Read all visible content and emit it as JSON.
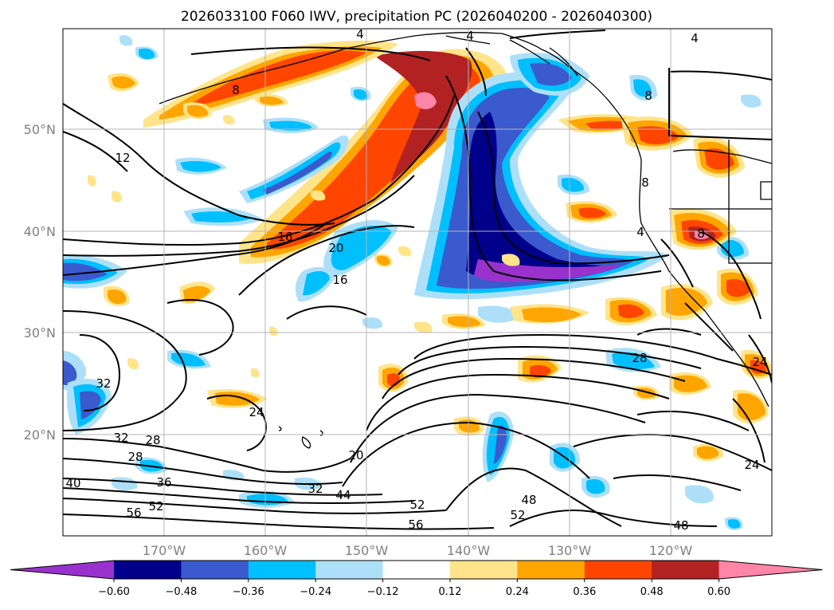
{
  "title": "2026033100 F060 IWV, precipitation PC (2026040200 - 2026040300)",
  "map": {
    "lat_labels": [
      "50°N",
      "40°N",
      "30°N",
      "20°N"
    ],
    "lon_labels": [
      "170°W",
      "160°W",
      "150°W",
      "140°W",
      "130°W",
      "120°W"
    ],
    "lat_values": [
      50,
      40,
      30,
      20
    ],
    "lon_values": [
      -170,
      -160,
      -150,
      -140,
      -130,
      -120
    ],
    "extent": {
      "lon_min": -180,
      "lon_max": -110,
      "lat_min": 10,
      "lat_max": 60
    }
  },
  "contour_labels": [
    "4",
    "4",
    "4",
    "8",
    "8",
    "8",
    "4",
    "8",
    "12",
    "16",
    "16",
    "20",
    "20",
    "24",
    "28",
    "28",
    "32",
    "32",
    "28",
    "36",
    "40",
    "56",
    "52",
    "32",
    "44",
    "52",
    "56",
    "48",
    "52",
    "48",
    "24",
    "24"
  ],
  "colorbar": {
    "ticks": [
      "−0.60",
      "−0.48",
      "−0.36",
      "−0.24",
      "−0.12",
      "0.12",
      "0.24",
      "0.36",
      "0.48",
      "0.60"
    ],
    "colors": [
      "#9932CC",
      "#00008B",
      "#3A5ACD",
      "#00BFFF",
      "#ADE0F8",
      "#FFFFFF",
      "#FFE48A",
      "#FFA500",
      "#FF4500",
      "#B22222",
      "#FF85A8"
    ]
  },
  "fill_colors": {
    "neg1": "#ADE0F8",
    "neg2": "#00BFFF",
    "neg3": "#3A5ACD",
    "neg4": "#00008B",
    "neg5": "#9932CC",
    "pos1": "#FFE48A",
    "pos2": "#FFA500",
    "pos3": "#FF4500",
    "pos4": "#B22222",
    "pos5": "#FF85A8"
  }
}
